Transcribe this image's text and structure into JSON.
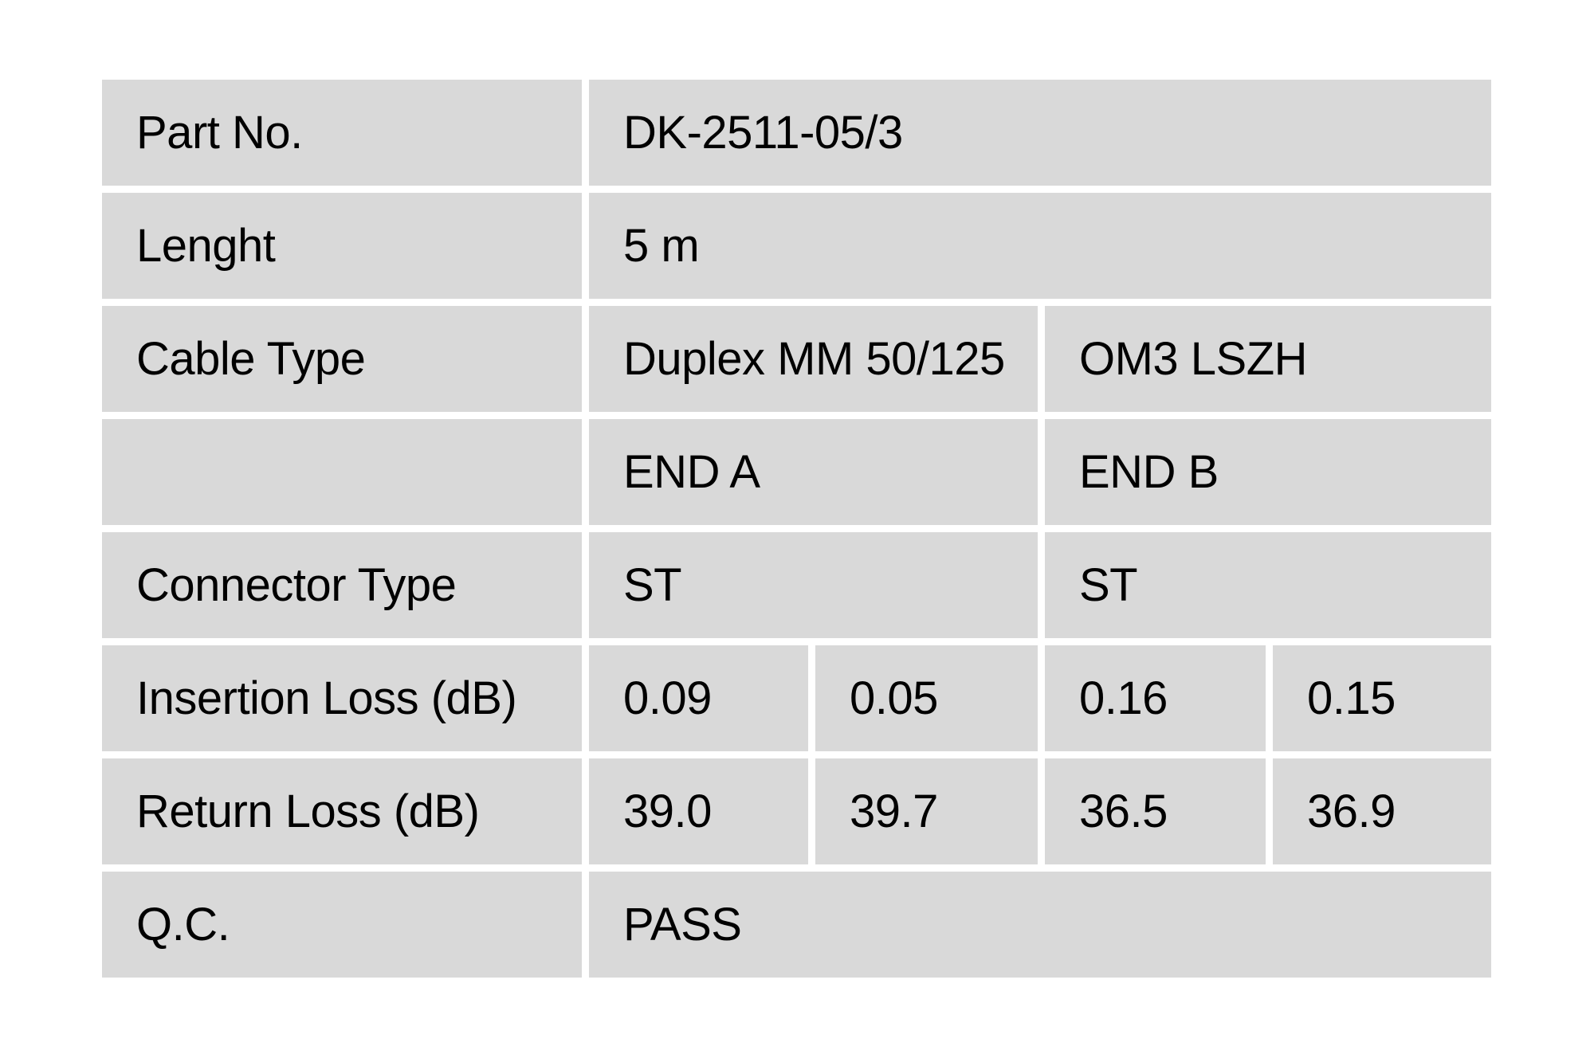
{
  "page": {
    "background_color": "#ffffff"
  },
  "table": {
    "cell_background_color": "#d9d9d9",
    "text_color": "#000000",
    "rows": [
      {
        "name": "part-no",
        "cells": [
          {
            "text": "Part No.",
            "span": 1
          },
          {
            "text": "DK-2511-05/3",
            "span": 4
          }
        ]
      },
      {
        "name": "length",
        "cells": [
          {
            "text": "Lenght",
            "span": 1
          },
          {
            "text": "5 m",
            "span": 4
          }
        ]
      },
      {
        "name": "cable-type",
        "cells": [
          {
            "text": "Cable Type",
            "span": 1
          },
          {
            "text": "Duplex MM 50/125",
            "span": 2
          },
          {
            "text": "OM3 LSZH",
            "span": 2
          }
        ]
      },
      {
        "name": "ends-header",
        "cells": [
          {
            "text": "",
            "span": 1
          },
          {
            "text": "END A",
            "span": 2
          },
          {
            "text": "END B",
            "span": 2
          }
        ]
      },
      {
        "name": "connector-type",
        "cells": [
          {
            "text": "Connector Type",
            "span": 1
          },
          {
            "text": "ST",
            "span": 2
          },
          {
            "text": "ST",
            "span": 2
          }
        ]
      },
      {
        "name": "insertion-loss",
        "cells": [
          {
            "text": "Insertion Loss (dB)",
            "span": 1
          },
          {
            "text": "0.09",
            "span": 1
          },
          {
            "text": "0.05",
            "span": 1
          },
          {
            "text": "0.16",
            "span": 1
          },
          {
            "text": "0.15",
            "span": 1
          }
        ]
      },
      {
        "name": "return-loss",
        "cells": [
          {
            "text": "Return Loss (dB)",
            "span": 1
          },
          {
            "text": "39.0",
            "span": 1
          },
          {
            "text": "39.7",
            "span": 1
          },
          {
            "text": "36.5",
            "span": 1
          },
          {
            "text": "36.9",
            "span": 1
          }
        ]
      },
      {
        "name": "qc",
        "cells": [
          {
            "text": "Q.C.",
            "span": 1
          },
          {
            "text": "PASS",
            "span": 4
          }
        ]
      }
    ]
  }
}
